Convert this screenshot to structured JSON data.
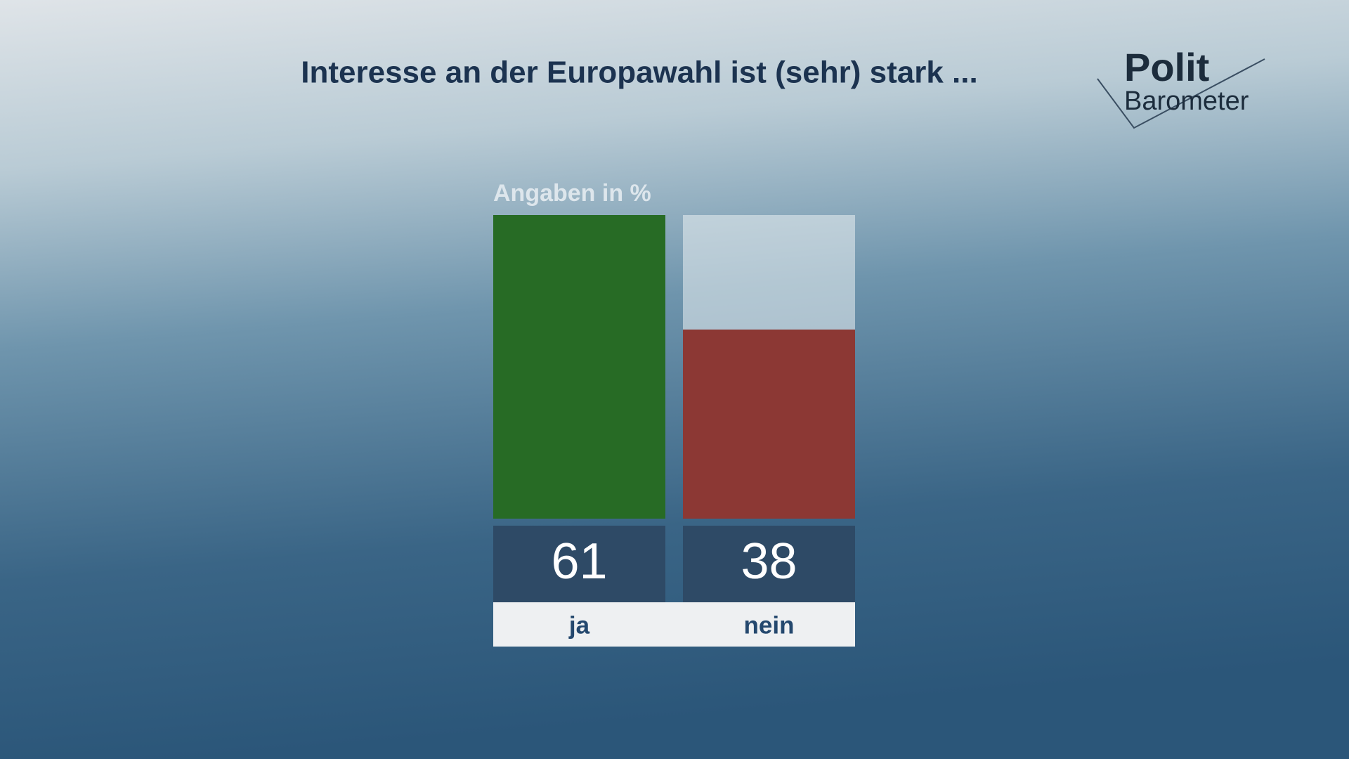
{
  "chart_data": {
    "type": "bar",
    "title": "Interesse an der Europawahl ist (sehr) stark ...",
    "subtitle": "Angaben in %",
    "categories": [
      "ja",
      "nein"
    ],
    "values": [
      61,
      38
    ],
    "colors": [
      "#276b25",
      "#8c3834"
    ],
    "ylim": [
      0,
      61
    ]
  },
  "logo": {
    "line1": "Polit",
    "line2": "Barometer"
  }
}
